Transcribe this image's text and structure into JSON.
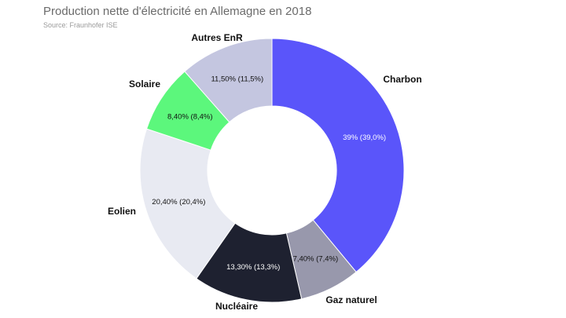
{
  "title": "Production nette d'électricité en Allemagne en 2018",
  "subtitle": "Source: Fraunhofer ISE",
  "chart_data": {
    "type": "pie",
    "donut": true,
    "start_angle_deg": 0,
    "direction": "clockwise",
    "slices": [
      {
        "name": "Charbon",
        "value": 39.0,
        "label": "39% (39,0%)",
        "color": "#5a55fa",
        "text_color": "#ffffff"
      },
      {
        "name": "Gaz naturel",
        "value": 7.4,
        "label": "7,40% (7,4%)",
        "color": "#9898ac",
        "text_color": "#111111"
      },
      {
        "name": "Nucléaire",
        "value": 13.3,
        "label": "13,30% (13,3%)",
        "color": "#1e2130",
        "text_color": "#ffffff"
      },
      {
        "name": "Eolien",
        "value": 20.4,
        "label": "20,40% (20,4%)",
        "color": "#e8eaf2",
        "text_color": "#111111"
      },
      {
        "name": "Solaire",
        "value": 8.4,
        "label": "8,40% (8,4%)",
        "color": "#5cf77c",
        "text_color": "#111111"
      },
      {
        "name": "Autres EnR",
        "value": 11.5,
        "label": "11,50% (11,5%)",
        "color": "#c4c6e0",
        "text_color": "#111111"
      }
    ]
  }
}
